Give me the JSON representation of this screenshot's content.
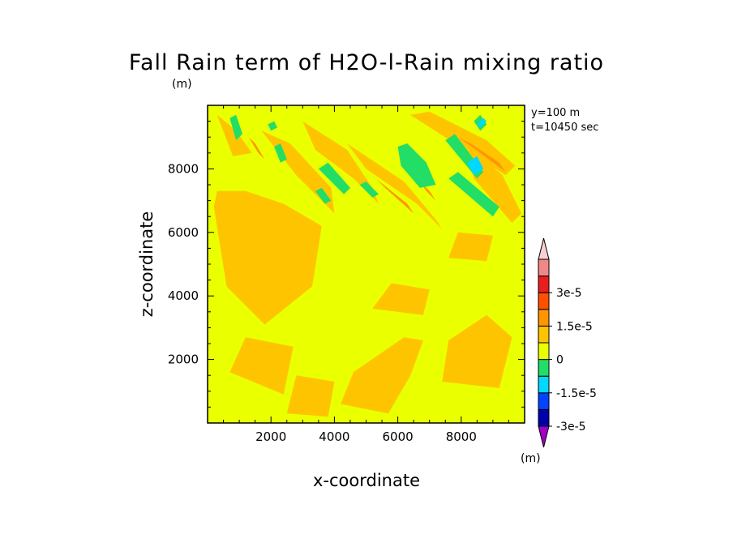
{
  "chart_data": {
    "type": "heatmap",
    "title": "Fall Rain term of H2O-l-Rain mixing ratio",
    "title_unit": "(m)",
    "xlabel": "x-coordinate",
    "ylabel": "z-coordinate",
    "xlim": [
      0,
      10000
    ],
    "ylim": [
      0,
      10000
    ],
    "xticks": [
      2000,
      4000,
      6000,
      8000
    ],
    "yticks": [
      2000,
      4000,
      6000,
      8000
    ],
    "xtick_labels": [
      "2000",
      "4000",
      "6000",
      "8000"
    ],
    "ytick_labels": [
      "2000",
      "4000",
      "6000",
      "8000"
    ],
    "annotation_lines": [
      "y=100 m",
      "t=10450 sec"
    ],
    "colorbar": {
      "unit": "(m)",
      "level_colors": [
        "#a000c8",
        "#0000a8",
        "#0044ff",
        "#00d8ff",
        "#22dd66",
        "#eaff00",
        "#ffc400",
        "#ff9600",
        "#ff5000",
        "#e81e1e",
        "#f08888",
        "#f8d0d0"
      ],
      "tick_labels": [
        "-3e-5",
        "-1.5e-5",
        "0",
        "1.5e-5",
        "3e-5"
      ]
    },
    "field": {
      "background_color": "#eaff00",
      "positive_regions": [
        {
          "x": [
            200,
            600,
            1800,
            3300,
            3600,
            2400,
            1200,
            300
          ],
          "z": [
            6800,
            4300,
            3100,
            4300,
            6200,
            6900,
            7300,
            7300
          ]
        },
        {
          "x": [
            700,
            2400,
            2700,
            1200
          ],
          "z": [
            1600,
            900,
            2400,
            2700
          ]
        },
        {
          "x": [
            2500,
            3800,
            4000,
            2800
          ],
          "z": [
            300,
            200,
            1300,
            1500
          ]
        },
        {
          "x": [
            4200,
            5700,
            6400,
            6800,
            6200,
            4600
          ],
          "z": [
            600,
            300,
            1500,
            2600,
            2700,
            1600
          ]
        },
        {
          "x": [
            7400,
            9200,
            9600,
            8800,
            7600
          ],
          "z": [
            1300,
            1100,
            2700,
            3400,
            2600
          ]
        },
        {
          "x": [
            5200,
            6800,
            7000,
            5800
          ],
          "z": [
            3600,
            3400,
            4200,
            4400
          ]
        },
        {
          "x": [
            7600,
            8800,
            9000,
            7900
          ],
          "z": [
            5200,
            5100,
            5900,
            6000
          ]
        },
        {
          "x": [
            1700,
            2600,
            3900,
            4000,
            2800
          ],
          "z": [
            9200,
            8800,
            7400,
            6600,
            7800
          ]
        },
        {
          "x": [
            3000,
            4400,
            5200,
            5400,
            4600,
            3400
          ],
          "z": [
            9500,
            8600,
            7400,
            6900,
            7700,
            8600
          ]
        },
        {
          "x": [
            4400,
            6200,
            7200,
            7400,
            6600,
            5000
          ],
          "z": [
            8800,
            7600,
            6400,
            6100,
            6900,
            8000
          ]
        },
        {
          "x": [
            6400,
            7800,
            9400,
            9700,
            8800,
            7000
          ],
          "z": [
            9700,
            8800,
            7800,
            8100,
            8900,
            9800
          ]
        },
        {
          "x": [
            8000,
            9300,
            9900,
            9600,
            8400
          ],
          "z": [
            8900,
            7800,
            6600,
            6300,
            7700
          ]
        },
        {
          "x": [
            300,
            900,
            1400,
            800
          ],
          "z": [
            9700,
            9200,
            8500,
            8400
          ]
        }
      ],
      "strong_positive_regions": [
        {
          "x": [
            4900,
            5600,
            6500,
            6300,
            5300
          ],
          "z": [
            8100,
            7400,
            6600,
            6900,
            7700
          ]
        },
        {
          "x": [
            7900,
            8600,
            9400,
            9200,
            8300
          ],
          "z": [
            9000,
            8500,
            7900,
            8200,
            8800
          ]
        },
        {
          "x": [
            1300,
            1600,
            1800,
            1500
          ],
          "z": [
            9000,
            8500,
            8300,
            8800
          ]
        },
        {
          "x": [
            6700,
            7000,
            7200,
            6900
          ],
          "z": [
            7600,
            7300,
            7000,
            7300
          ]
        }
      ],
      "negative_regions": [
        {
          "x": [
            700,
            900,
            1100,
            900
          ],
          "z": [
            9600,
            9700,
            9100,
            8900
          ]
        },
        {
          "x": [
            2100,
            2300,
            2500,
            2300
          ],
          "z": [
            8700,
            8800,
            8300,
            8200
          ]
        },
        {
          "x": [
            3500,
            3800,
            4500,
            4300
          ],
          "z": [
            8000,
            8200,
            7400,
            7200
          ]
        },
        {
          "x": [
            3400,
            3600,
            3900,
            3700
          ],
          "z": [
            7300,
            7400,
            7000,
            6900
          ]
        },
        {
          "x": [
            4800,
            5000,
            5400,
            5200
          ],
          "z": [
            7500,
            7600,
            7200,
            7100
          ]
        },
        {
          "x": [
            6000,
            6300,
            6900,
            7200,
            6700,
            6100
          ],
          "z": [
            8700,
            8800,
            8200,
            7500,
            7400,
            8100
          ]
        },
        {
          "x": [
            7500,
            7800,
            8700,
            8500
          ],
          "z": [
            8900,
            9100,
            7900,
            7700
          ]
        },
        {
          "x": [
            7600,
            7900,
            9200,
            9000
          ],
          "z": [
            7700,
            7900,
            6800,
            6500
          ]
        },
        {
          "x": [
            8400,
            8600,
            8800,
            8600
          ],
          "z": [
            9500,
            9700,
            9400,
            9200
          ]
        },
        {
          "x": [
            1900,
            2100,
            2200,
            2000
          ],
          "z": [
            9400,
            9500,
            9300,
            9200
          ]
        }
      ],
      "strong_negative_regions": [
        {
          "x": [
            8200,
            8500,
            8700,
            8400
          ],
          "z": [
            8200,
            8400,
            8000,
            7800
          ]
        },
        {
          "x": [
            8500,
            8700,
            8800,
            8600
          ],
          "z": [
            9400,
            9600,
            9500,
            9300
          ]
        }
      ]
    }
  }
}
